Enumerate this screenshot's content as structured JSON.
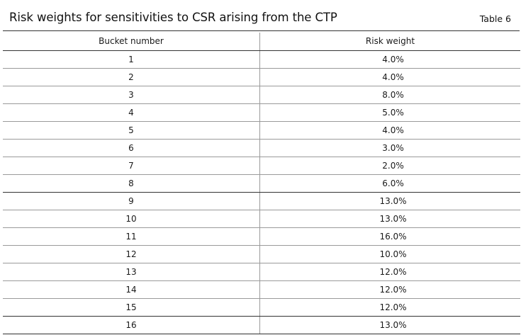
{
  "header": {
    "title": "Risk weights for sensitivities to CSR arising from the CTP",
    "table_label": "Table 6"
  },
  "table": {
    "columns": [
      "Bucket number",
      "Risk weight"
    ],
    "rows": [
      {
        "bucket": "1",
        "weight": "4.0%"
      },
      {
        "bucket": "2",
        "weight": "4.0%"
      },
      {
        "bucket": "3",
        "weight": "8.0%"
      },
      {
        "bucket": "4",
        "weight": "5.0%"
      },
      {
        "bucket": "5",
        "weight": "4.0%"
      },
      {
        "bucket": "6",
        "weight": "3.0%"
      },
      {
        "bucket": "7",
        "weight": "2.0%"
      },
      {
        "bucket": "8",
        "weight": "6.0%"
      },
      {
        "bucket": "9",
        "weight": "13.0%"
      },
      {
        "bucket": "10",
        "weight": "13.0%"
      },
      {
        "bucket": "11",
        "weight": "16.0%"
      },
      {
        "bucket": "12",
        "weight": "10.0%"
      },
      {
        "bucket": "13",
        "weight": "12.0%"
      },
      {
        "bucket": "14",
        "weight": "12.0%"
      },
      {
        "bucket": "15",
        "weight": "12.0%"
      },
      {
        "bucket": "16",
        "weight": "13.0%"
      }
    ]
  }
}
